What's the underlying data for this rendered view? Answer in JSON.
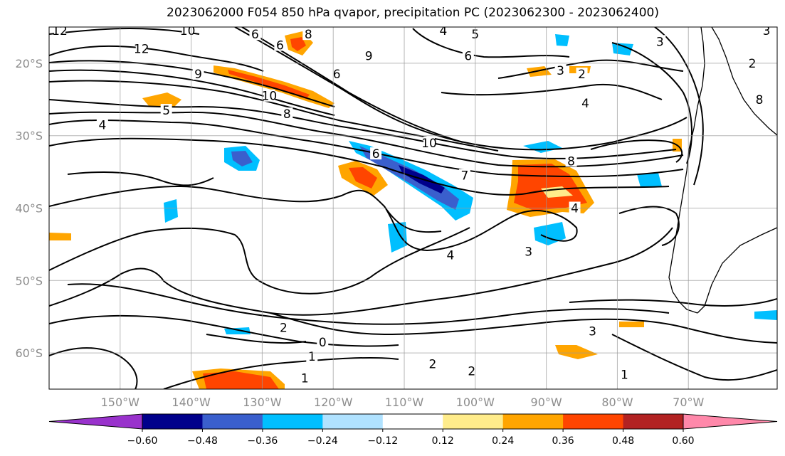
{
  "title": "2023062000 F054 850 hPa qvapor, precipitation PC (2023062300 - 2023062400)",
  "map": {
    "lon_range": [
      -160,
      -57.5
    ],
    "lat_range": [
      -65,
      -15
    ],
    "lon_ticks": [
      {
        "lon": -150,
        "label": "150°W"
      },
      {
        "lon": -140,
        "label": "140°W"
      },
      {
        "lon": -130,
        "label": "130°W"
      },
      {
        "lon": -120,
        "label": "120°W"
      },
      {
        "lon": -110,
        "label": "110°W"
      },
      {
        "lon": -100,
        "label": "100°W"
      },
      {
        "lon": -90,
        "label": "90°W"
      },
      {
        "lon": -80,
        "label": "80°W"
      },
      {
        "lon": -70,
        "label": "70°W"
      }
    ],
    "lat_ticks": [
      {
        "lat": -20,
        "label": "20°S"
      },
      {
        "lat": -30,
        "label": "30°S"
      },
      {
        "lat": -40,
        "label": "40°S"
      },
      {
        "lat": -50,
        "label": "50°S"
      },
      {
        "lat": -60,
        "label": "60°S"
      }
    ],
    "grid": true
  },
  "colorbar": {
    "extend": "both",
    "under_color": "#9932cc",
    "over_color": "#ff88aa",
    "bins": [
      {
        "from": -0.6,
        "to": -0.48,
        "color": "#00008b"
      },
      {
        "from": -0.48,
        "to": -0.36,
        "color": "#3a5fcd"
      },
      {
        "from": -0.36,
        "to": -0.24,
        "color": "#00bfff"
      },
      {
        "from": -0.24,
        "to": -0.12,
        "color": "#b0e2ff"
      },
      {
        "from": -0.12,
        "to": 0.12,
        "color": "#ffffff"
      },
      {
        "from": 0.12,
        "to": 0.24,
        "color": "#ffec8b"
      },
      {
        "from": 0.24,
        "to": 0.36,
        "color": "#ffa500"
      },
      {
        "from": 0.36,
        "to": 0.48,
        "color": "#ff4500"
      },
      {
        "from": 0.48,
        "to": 0.6,
        "color": "#b22222"
      }
    ],
    "tick_labels": [
      "−0.60",
      "−0.48",
      "−0.36",
      "−0.24",
      "−0.12",
      "0.12",
      "0.24",
      "0.36",
      "0.48",
      "0.60"
    ]
  },
  "contours": {
    "variable": "qvapor",
    "labels": [
      {
        "text": "12",
        "lon": -158.5,
        "lat": -15.5
      },
      {
        "text": "10",
        "lon": -140.5,
        "lat": -15.5
      },
      {
        "text": "12",
        "lon": -147,
        "lat": -18
      },
      {
        "text": "9",
        "lon": -139,
        "lat": -21.5
      },
      {
        "text": "5",
        "lon": -143.5,
        "lat": -26.5
      },
      {
        "text": "4",
        "lon": -152.5,
        "lat": -28.5
      },
      {
        "text": "6",
        "lon": -131,
        "lat": -16
      },
      {
        "text": "6",
        "lon": -127.5,
        "lat": -17.5
      },
      {
        "text": "8",
        "lon": -123.5,
        "lat": -16
      },
      {
        "text": "9",
        "lon": -115,
        "lat": -19
      },
      {
        "text": "6",
        "lon": -119.5,
        "lat": -21.5
      },
      {
        "text": "10",
        "lon": -129,
        "lat": -24.5
      },
      {
        "text": "8",
        "lon": -126.5,
        "lat": -27
      },
      {
        "text": "10",
        "lon": -106.5,
        "lat": -31
      },
      {
        "text": "6",
        "lon": -114,
        "lat": -32.5
      },
      {
        "text": "4",
        "lon": -104.5,
        "lat": -15.5
      },
      {
        "text": "5",
        "lon": -100,
        "lat": -16
      },
      {
        "text": "6",
        "lon": -101,
        "lat": -19
      },
      {
        "text": "3",
        "lon": -88,
        "lat": -21
      },
      {
        "text": "2",
        "lon": -85,
        "lat": -21.5
      },
      {
        "text": "4",
        "lon": -84.5,
        "lat": -25.5
      },
      {
        "text": "7",
        "lon": -101.5,
        "lat": -35.5
      },
      {
        "text": "8",
        "lon": -86.5,
        "lat": -33.5
      },
      {
        "text": "4",
        "lon": -86,
        "lat": -40
      },
      {
        "text": "3",
        "lon": -92.5,
        "lat": -46
      },
      {
        "text": "4",
        "lon": -103.5,
        "lat": -46.5
      },
      {
        "text": "2",
        "lon": -127,
        "lat": -56.5
      },
      {
        "text": "0",
        "lon": -121.5,
        "lat": -58.5
      },
      {
        "text": "1",
        "lon": -123,
        "lat": -60.5
      },
      {
        "text": "2",
        "lon": -106,
        "lat": -61.5
      },
      {
        "text": "2",
        "lon": -100.5,
        "lat": -62.5
      },
      {
        "text": "1",
        "lon": -124,
        "lat": -63.5
      },
      {
        "text": "3",
        "lon": -83.5,
        "lat": -57
      },
      {
        "text": "1",
        "lon": -79,
        "lat": -63
      },
      {
        "text": "3",
        "lon": -74,
        "lat": -17
      },
      {
        "text": "2",
        "lon": -61,
        "lat": -20
      },
      {
        "text": "8",
        "lon": -60,
        "lat": -25
      },
      {
        "text": "3",
        "lon": -59,
        "lat": -15.5
      }
    ]
  }
}
